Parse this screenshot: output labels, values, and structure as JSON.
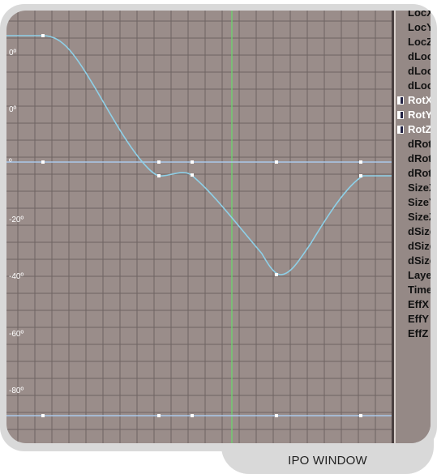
{
  "caption": "IPO WINDOW",
  "y_axis_labels": [
    "0º",
    "0º",
    "º",
    "-20º",
    "-40º",
    "-60º",
    "-80º"
  ],
  "channels": [
    {
      "label": "LocX",
      "selected": false
    },
    {
      "label": "LocY",
      "selected": false
    },
    {
      "label": "LocZ",
      "selected": false
    },
    {
      "label": "dLocX",
      "selected": false
    },
    {
      "label": "dLocY",
      "selected": false
    },
    {
      "label": "dLocZ",
      "selected": false
    },
    {
      "label": "RotX",
      "selected": true
    },
    {
      "label": "RotY",
      "selected": true
    },
    {
      "label": "RotZ",
      "selected": true
    },
    {
      "label": "dRotX",
      "selected": false
    },
    {
      "label": "dRotY",
      "selected": false
    },
    {
      "label": "dRotZ",
      "selected": false
    },
    {
      "label": "SizeX",
      "selected": false
    },
    {
      "label": "SizeY",
      "selected": false
    },
    {
      "label": "SizeZ",
      "selected": false
    },
    {
      "label": "dSizeX",
      "selected": false
    },
    {
      "label": "dSizeY",
      "selected": false
    },
    {
      "label": "dSizeZ",
      "selected": false
    },
    {
      "label": "Layer",
      "selected": false
    },
    {
      "label": "Time",
      "selected": false
    },
    {
      "label": "EffX",
      "selected": false
    },
    {
      "label": "EffY",
      "selected": false
    },
    {
      "label": "EffZ",
      "selected": false
    }
  ],
  "colors": {
    "background": "#9a8d8a",
    "grid": "#6e6462",
    "curve": "#8ed0e8",
    "flat_lines": "#a9c8ea",
    "current_frame_line": "#6fcf6f",
    "keyframe": "#ffffff"
  }
}
